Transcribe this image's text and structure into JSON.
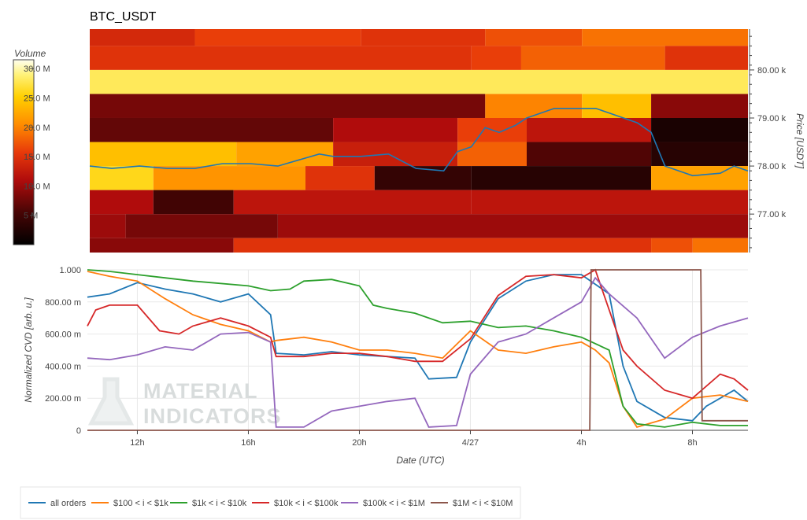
{
  "chart_data": [
    {
      "type": "heatmap",
      "title": "BTC_USDT",
      "colorbar": {
        "title": "Volume",
        "tick_labels": [
          "30.0 M",
          "25.0 M",
          "20.0 M",
          "15.0 M",
          "10.0 M",
          "5 M"
        ],
        "tick_values": [
          30,
          25,
          20,
          15,
          10,
          5
        ],
        "range": [
          0,
          31.5
        ]
      },
      "ylabel": "Price [USDT]",
      "y_tick_labels": [
        "80.00 k",
        "79.00 k",
        "78.00 k",
        "77.00 k"
      ],
      "y_tick_values": [
        80000,
        79000,
        78000,
        77000
      ],
      "ylim": [
        76200,
        80850
      ],
      "x_range_hours": [
        10.2,
        34.0
      ],
      "price_bands": [
        {
          "bottom": 80500,
          "top": 80850,
          "segments": [
            [
              10.2,
              14.0,
              14
            ],
            [
              14.0,
              20.0,
              16
            ],
            [
              20.0,
              24.5,
              15
            ],
            [
              24.5,
              28.0,
              17
            ],
            [
              28.0,
              34.0,
              19
            ]
          ]
        },
        {
          "bottom": 80000,
          "top": 80500,
          "segments": [
            [
              10.2,
              24.0,
              15
            ],
            [
              24.0,
              25.8,
              16
            ],
            [
              25.8,
              31.0,
              18
            ],
            [
              31.0,
              34.0,
              15
            ]
          ]
        },
        {
          "bottom": 79500,
          "top": 80000,
          "segments": [
            [
              10.2,
              34.0,
              28
            ]
          ]
        },
        {
          "bottom": 79000,
          "top": 79500,
          "segments": [
            [
              10.2,
              24.5,
              8
            ],
            [
              24.5,
              28.0,
              20
            ],
            [
              28.0,
              30.5,
              24
            ],
            [
              30.5,
              34.0,
              9
            ]
          ]
        },
        {
          "bottom": 78500,
          "top": 79000,
          "segments": [
            [
              10.2,
              19.0,
              7
            ],
            [
              19.0,
              23.5,
              11
            ],
            [
              23.5,
              26.0,
              16
            ],
            [
              26.0,
              30.5,
              12
            ],
            [
              30.5,
              34.0,
              2
            ]
          ]
        },
        {
          "bottom": 78000,
          "top": 78500,
          "segments": [
            [
              10.2,
              15.5,
              24
            ],
            [
              15.5,
              19.0,
              22
            ],
            [
              19.0,
              23.5,
              13
            ],
            [
              23.5,
              26.0,
              18
            ],
            [
              26.0,
              30.5,
              6
            ],
            [
              30.5,
              34.0,
              3
            ]
          ]
        },
        {
          "bottom": 77500,
          "top": 78000,
          "segments": [
            [
              10.2,
              12.5,
              26
            ],
            [
              12.5,
              18.0,
              21
            ],
            [
              18.0,
              20.5,
              15
            ],
            [
              20.5,
              24.0,
              4
            ],
            [
              24.0,
              30.5,
              3
            ],
            [
              30.5,
              34.0,
              22
            ]
          ]
        },
        {
          "bottom": 77000,
          "top": 77500,
          "segments": [
            [
              10.2,
              12.5,
              11
            ],
            [
              12.5,
              15.4,
              5
            ],
            [
              15.4,
              24.0,
              12
            ],
            [
              24.0,
              34.0,
              12
            ]
          ]
        },
        {
          "bottom": 76500,
          "top": 77000,
          "segments": [
            [
              10.2,
              11.5,
              10
            ],
            [
              11.5,
              17.0,
              8
            ],
            [
              17.0,
              34.0,
              10
            ]
          ]
        },
        {
          "bottom": 76200,
          "top": 76500,
          "segments": [
            [
              10.2,
              15.4,
              9
            ],
            [
              15.4,
              30.5,
              15
            ],
            [
              30.5,
              32.0,
              17
            ],
            [
              32.0,
              34.0,
              19
            ]
          ]
        }
      ],
      "price_line": {
        "color": "#1f77b4",
        "points": [
          [
            10.2,
            78000
          ],
          [
            11.0,
            77950
          ],
          [
            12.0,
            78000
          ],
          [
            13.0,
            77950
          ],
          [
            14.0,
            77950
          ],
          [
            15.0,
            78050
          ],
          [
            16.0,
            78050
          ],
          [
            17.0,
            78000
          ],
          [
            18.5,
            78250
          ],
          [
            19.0,
            78200
          ],
          [
            20.0,
            78200
          ],
          [
            21.0,
            78250
          ],
          [
            22.0,
            77950
          ],
          [
            23.0,
            77900
          ],
          [
            23.5,
            78300
          ],
          [
            24.0,
            78400
          ],
          [
            24.5,
            78800
          ],
          [
            25.0,
            78700
          ],
          [
            25.6,
            78850
          ],
          [
            26.0,
            79000
          ],
          [
            27.0,
            79200
          ],
          [
            28.5,
            79200
          ],
          [
            29.0,
            79100
          ],
          [
            30.0,
            78900
          ],
          [
            30.5,
            78700
          ],
          [
            31.0,
            78000
          ],
          [
            32.0,
            77800
          ],
          [
            33.0,
            77850
          ],
          [
            33.5,
            78000
          ],
          [
            34.0,
            77900
          ]
        ]
      }
    },
    {
      "type": "line",
      "xlabel": "Date (UTC)",
      "ylabel": "Normalized CVD [arb. u.]",
      "x_tick_labels": [
        "12h",
        "16h",
        "20h",
        "4/27",
        "4h",
        "8h"
      ],
      "x_tick_values": [
        12,
        16,
        20,
        24,
        28,
        32
      ],
      "y_tick_labels": [
        "1.000",
        "800.00 m",
        "600.00 m",
        "400.00 m",
        "200.00 m",
        "0"
      ],
      "y_tick_values": [
        1.0,
        0.8,
        0.6,
        0.4,
        0.2,
        0
      ],
      "xlim": [
        10.2,
        34.0
      ],
      "ylim": [
        0,
        1.0
      ],
      "legend_position": "bottom",
      "series": [
        {
          "name": "all orders",
          "color": "#1f77b4",
          "points": [
            [
              10.2,
              0.83
            ],
            [
              11.0,
              0.85
            ],
            [
              12.0,
              0.92
            ],
            [
              13.0,
              0.88
            ],
            [
              14.0,
              0.85
            ],
            [
              15.0,
              0.8
            ],
            [
              16.0,
              0.85
            ],
            [
              16.8,
              0.72
            ],
            [
              17.0,
              0.48
            ],
            [
              18.0,
              0.47
            ],
            [
              19.0,
              0.49
            ],
            [
              20.0,
              0.47
            ],
            [
              21.0,
              0.46
            ],
            [
              22.0,
              0.45
            ],
            [
              22.5,
              0.32
            ],
            [
              23.5,
              0.33
            ],
            [
              24.0,
              0.55
            ],
            [
              25.0,
              0.82
            ],
            [
              26.0,
              0.93
            ],
            [
              27.0,
              0.97
            ],
            [
              28.0,
              0.97
            ],
            [
              29.0,
              0.85
            ],
            [
              29.5,
              0.4
            ],
            [
              30.0,
              0.18
            ],
            [
              31.0,
              0.08
            ],
            [
              32.0,
              0.06
            ],
            [
              32.5,
              0.15
            ],
            [
              33.5,
              0.25
            ],
            [
              34.0,
              0.18
            ]
          ]
        },
        {
          "name": "$100 < i < $1k",
          "color": "#ff7f0e",
          "points": [
            [
              10.2,
              0.99
            ],
            [
              11.0,
              0.96
            ],
            [
              12.0,
              0.93
            ],
            [
              13.0,
              0.82
            ],
            [
              14.0,
              0.72
            ],
            [
              15.0,
              0.66
            ],
            [
              16.0,
              0.62
            ],
            [
              16.8,
              0.55
            ],
            [
              17.0,
              0.56
            ],
            [
              18.0,
              0.58
            ],
            [
              19.0,
              0.55
            ],
            [
              20.0,
              0.5
            ],
            [
              21.0,
              0.5
            ],
            [
              22.0,
              0.48
            ],
            [
              23.0,
              0.45
            ],
            [
              24.0,
              0.62
            ],
            [
              25.0,
              0.5
            ],
            [
              26.0,
              0.48
            ],
            [
              27.0,
              0.52
            ],
            [
              28.0,
              0.55
            ],
            [
              28.5,
              0.5
            ],
            [
              29.0,
              0.42
            ],
            [
              29.5,
              0.15
            ],
            [
              30.0,
              0.02
            ],
            [
              31.0,
              0.07
            ],
            [
              32.0,
              0.2
            ],
            [
              33.0,
              0.22
            ],
            [
              34.0,
              0.18
            ]
          ]
        },
        {
          "name": "$1k < i < $10k",
          "color": "#2ca02c",
          "points": [
            [
              10.2,
              1.0
            ],
            [
              11.0,
              0.99
            ],
            [
              12.0,
              0.97
            ],
            [
              13.0,
              0.95
            ],
            [
              14.0,
              0.93
            ],
            [
              16.0,
              0.9
            ],
            [
              16.8,
              0.87
            ],
            [
              17.5,
              0.88
            ],
            [
              18.0,
              0.93
            ],
            [
              19.0,
              0.94
            ],
            [
              20.0,
              0.9
            ],
            [
              20.5,
              0.78
            ],
            [
              21.0,
              0.76
            ],
            [
              22.0,
              0.73
            ],
            [
              23.0,
              0.67
            ],
            [
              24.0,
              0.68
            ],
            [
              25.0,
              0.64
            ],
            [
              26.0,
              0.65
            ],
            [
              27.0,
              0.62
            ],
            [
              28.0,
              0.58
            ],
            [
              29.0,
              0.5
            ],
            [
              29.5,
              0.15
            ],
            [
              30.0,
              0.04
            ],
            [
              31.0,
              0.02
            ],
            [
              32.0,
              0.05
            ],
            [
              33.0,
              0.03
            ],
            [
              34.0,
              0.03
            ]
          ]
        },
        {
          "name": "$10k < i < $100k",
          "color": "#d62728",
          "points": [
            [
              10.2,
              0.65
            ],
            [
              10.5,
              0.75
            ],
            [
              11.0,
              0.78
            ],
            [
              12.0,
              0.78
            ],
            [
              12.8,
              0.62
            ],
            [
              13.5,
              0.6
            ],
            [
              14.0,
              0.65
            ],
            [
              15.0,
              0.7
            ],
            [
              16.0,
              0.65
            ],
            [
              16.8,
              0.58
            ],
            [
              17.0,
              0.46
            ],
            [
              18.0,
              0.46
            ],
            [
              19.0,
              0.48
            ],
            [
              20.0,
              0.48
            ],
            [
              21.0,
              0.46
            ],
            [
              22.0,
              0.43
            ],
            [
              23.0,
              0.43
            ],
            [
              24.0,
              0.57
            ],
            [
              25.0,
              0.84
            ],
            [
              26.0,
              0.96
            ],
            [
              27.0,
              0.97
            ],
            [
              28.0,
              0.95
            ],
            [
              28.5,
              1.0
            ],
            [
              29.5,
              0.5
            ],
            [
              30.0,
              0.4
            ],
            [
              31.0,
              0.25
            ],
            [
              32.0,
              0.2
            ],
            [
              33.0,
              0.35
            ],
            [
              33.5,
              0.32
            ],
            [
              34.0,
              0.25
            ]
          ]
        },
        {
          "name": "$100k < i < $1M",
          "color": "#9467bd",
          "points": [
            [
              10.2,
              0.45
            ],
            [
              11.0,
              0.44
            ],
            [
              12.0,
              0.47
            ],
            [
              13.0,
              0.52
            ],
            [
              14.0,
              0.5
            ],
            [
              15.0,
              0.6
            ],
            [
              16.0,
              0.61
            ],
            [
              16.8,
              0.55
            ],
            [
              17.0,
              0.02
            ],
            [
              18.0,
              0.02
            ],
            [
              19.0,
              0.12
            ],
            [
              20.0,
              0.15
            ],
            [
              21.0,
              0.18
            ],
            [
              22.0,
              0.2
            ],
            [
              22.5,
              0.02
            ],
            [
              23.5,
              0.03
            ],
            [
              24.0,
              0.35
            ],
            [
              25.0,
              0.55
            ],
            [
              26.0,
              0.6
            ],
            [
              27.0,
              0.7
            ],
            [
              28.0,
              0.8
            ],
            [
              28.5,
              0.95
            ],
            [
              29.0,
              0.85
            ],
            [
              30.0,
              0.7
            ],
            [
              31.0,
              0.45
            ],
            [
              32.0,
              0.58
            ],
            [
              33.0,
              0.65
            ],
            [
              34.0,
              0.7
            ]
          ]
        },
        {
          "name": "$1M < i < $10M",
          "color": "#8c564b",
          "points": [
            [
              10.2,
              0
            ],
            [
              28.3,
              0
            ],
            [
              28.35,
              1.0
            ],
            [
              32.3,
              1.0
            ],
            [
              32.35,
              0.06
            ],
            [
              34.0,
              0.06
            ]
          ]
        }
      ]
    }
  ],
  "watermark": {
    "line1": "MATERIAL",
    "line2": "INDICATORS"
  },
  "icons": {
    "flask": "flask-icon"
  }
}
